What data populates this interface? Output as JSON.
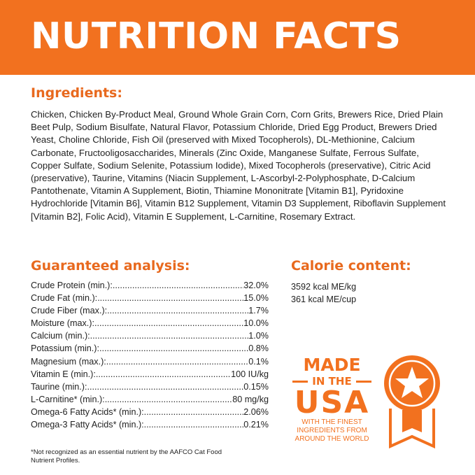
{
  "header": {
    "title": "NUTRITION FACTS",
    "color": "#f2711f"
  },
  "ingredients": {
    "heading": "Ingredients:",
    "text": "Chicken, Chicken By-Product Meal, Ground Whole Grain Corn, Corn Grits, Brewers Rice, Dried Plain Beet Pulp, Sodium Bisulfate, Natural Flavor, Potassium Chloride, Dried Egg Product, Brewers Dried Yeast, Choline Chloride, Fish Oil (preserved with Mixed Tocopherols), DL-Methionine, Calcium Carbonate, Fructooligosaccharides, Minerals (Zinc Oxide, Manganese Sulfate, Ferrous Sulfate, Copper Sulfate, Sodium Selenite, Potassium Iodide), Mixed Tocopherols (preservative), Citric Acid (preservative), Taurine, Vitamins (Niacin Supplement, L-Ascorbyl-2-Polyphosphate, D-Calcium Pantothenate, Vitamin A Supplement, Biotin, Thiamine Mononitrate [Vitamin B1], Pyridoxine Hydrochloride [Vitamin B6], Vitamin B12 Supplement, Vitamin D3 Supplement, Riboflavin Supplement [Vitamin B2], Folic Acid), Vitamin E Supplement, L-Carnitine, Rosemary Extract."
  },
  "analysis": {
    "heading": "Guaranteed analysis:",
    "rows": [
      {
        "label": "Crude Protein (min.):",
        "value": "32.0%"
      },
      {
        "label": "Crude Fat (min.):",
        "value": "15.0%"
      },
      {
        "label": "Crude Fiber (max.):",
        "value": "1.7%"
      },
      {
        "label": "Moisture (max.):",
        "value": "10.0%"
      },
      {
        "label": "Calcium (min.):",
        "value": "1.0%"
      },
      {
        "label": "Potassium (min.):",
        "value": "0.8%"
      },
      {
        "label": "Magnesium (max.):",
        "value": "0.1%"
      },
      {
        "label": "Vitamin E (min.):",
        "value": "100 IU/kg"
      },
      {
        "label": "Taurine (min.):",
        "value": "0.15%"
      },
      {
        "label": "L-Carnitine* (min.):",
        "value": "80 mg/kg"
      },
      {
        "label": "Omega-6 Fatty Acids* (min.):",
        "value": "2.06%"
      },
      {
        "label": "Omega-3 Fatty Acids* (min.):",
        "value": "0.21%"
      }
    ]
  },
  "calorie": {
    "heading": "Calorie content:",
    "lines": [
      "3592 kcal ME/kg",
      "361 kcal ME/cup"
    ]
  },
  "footnote": "*Not recognized as an essential nutrient by the AAFCO Cat Food Nutrient Profiles.",
  "badge": {
    "made": "MADE",
    "inthe": "IN THE",
    "usa": "USA",
    "sub": [
      "WITH THE FINEST",
      "INGREDIENTS FROM",
      "AROUND THE WORLD"
    ],
    "icon": "star-medal-icon"
  }
}
